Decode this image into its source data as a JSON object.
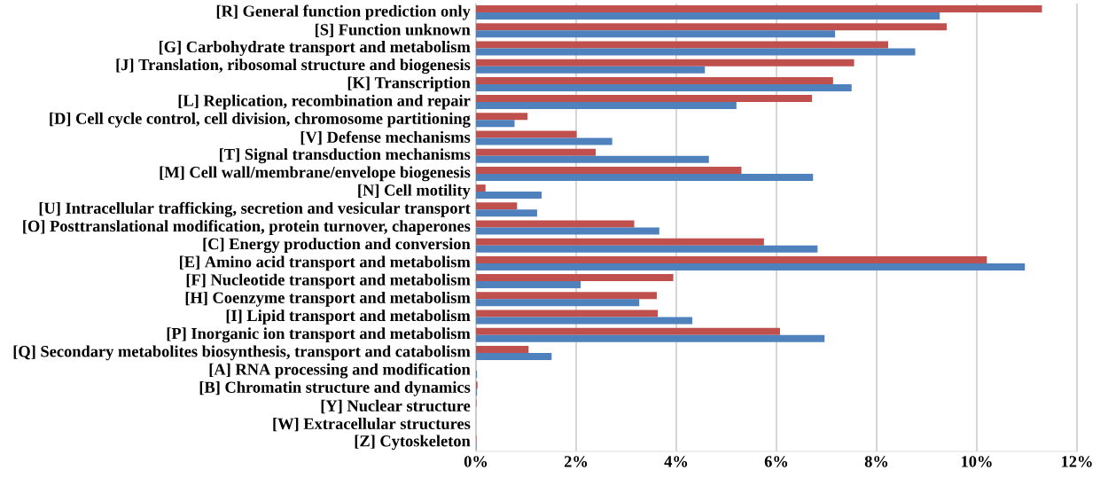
{
  "chart_data": {
    "type": "bar",
    "orientation": "horizontal",
    "categories": [
      "[R] General function prediction only",
      "[S] Function unknown",
      "[G] Carbohydrate transport and metabolism",
      "[J] Translation, ribosomal structure and biogenesis",
      "[K] Transcription",
      "[L] Replication, recombination and repair",
      "[D] Cell cycle control, cell division, chromosome partitioning",
      "[V] Defense mechanisms",
      "[T] Signal transduction mechanisms",
      "[M] Cell wall/membrane/envelope biogenesis",
      "[N] Cell motility",
      "[U] Intracellular trafficking, secretion and vesicular transport",
      "[O] Posttranslational modification, protein turnover, chaperones",
      "[C] Energy production and conversion",
      "[E] Amino acid transport and metabolism",
      "[F] Nucleotide transport and metabolism",
      "[H] Coenzyme transport and metabolism",
      "[I] Lipid transport and metabolism",
      "[P] Inorganic ion transport and metabolism",
      "[Q] Secondary metabolites biosynthesis, transport and catabolism",
      "[A] RNA processing and modification",
      "[B] Chromatin structure and dynamics",
      "[Y] Nuclear structure",
      "[W] Extracellular structures",
      "[Z] Cytoskeleton"
    ],
    "series": [
      {
        "color": "#c0504d",
        "values": [
          11.3,
          9.4,
          8.23,
          7.55,
          7.13,
          6.71,
          1.03,
          2.01,
          2.39,
          5.3,
          0.19,
          0.82,
          3.16,
          5.75,
          10.2,
          3.94,
          3.61,
          3.63,
          6.07,
          1.05,
          0,
          0.03,
          0.01,
          0,
          0.01
        ]
      },
      {
        "color": "#4f81bd",
        "values": [
          9.26,
          7.17,
          8.77,
          4.57,
          7.5,
          5.2,
          0.77,
          2.72,
          4.65,
          6.73,
          1.31,
          1.22,
          3.66,
          6.82,
          10.96,
          2.09,
          3.26,
          4.32,
          6.96,
          1.51,
          0.02,
          0.02,
          0,
          0,
          0.01
        ]
      }
    ],
    "xlim": [
      0,
      12
    ],
    "xticks": [
      {
        "value": 0,
        "label": "0%"
      },
      {
        "value": 2,
        "label": "2%"
      },
      {
        "value": 4,
        "label": "4%"
      },
      {
        "value": 6,
        "label": "6%"
      },
      {
        "value": 8,
        "label": "8%"
      },
      {
        "value": 10,
        "label": "10%"
      },
      {
        "value": 12,
        "label": "12%"
      }
    ],
    "grid": "x"
  }
}
